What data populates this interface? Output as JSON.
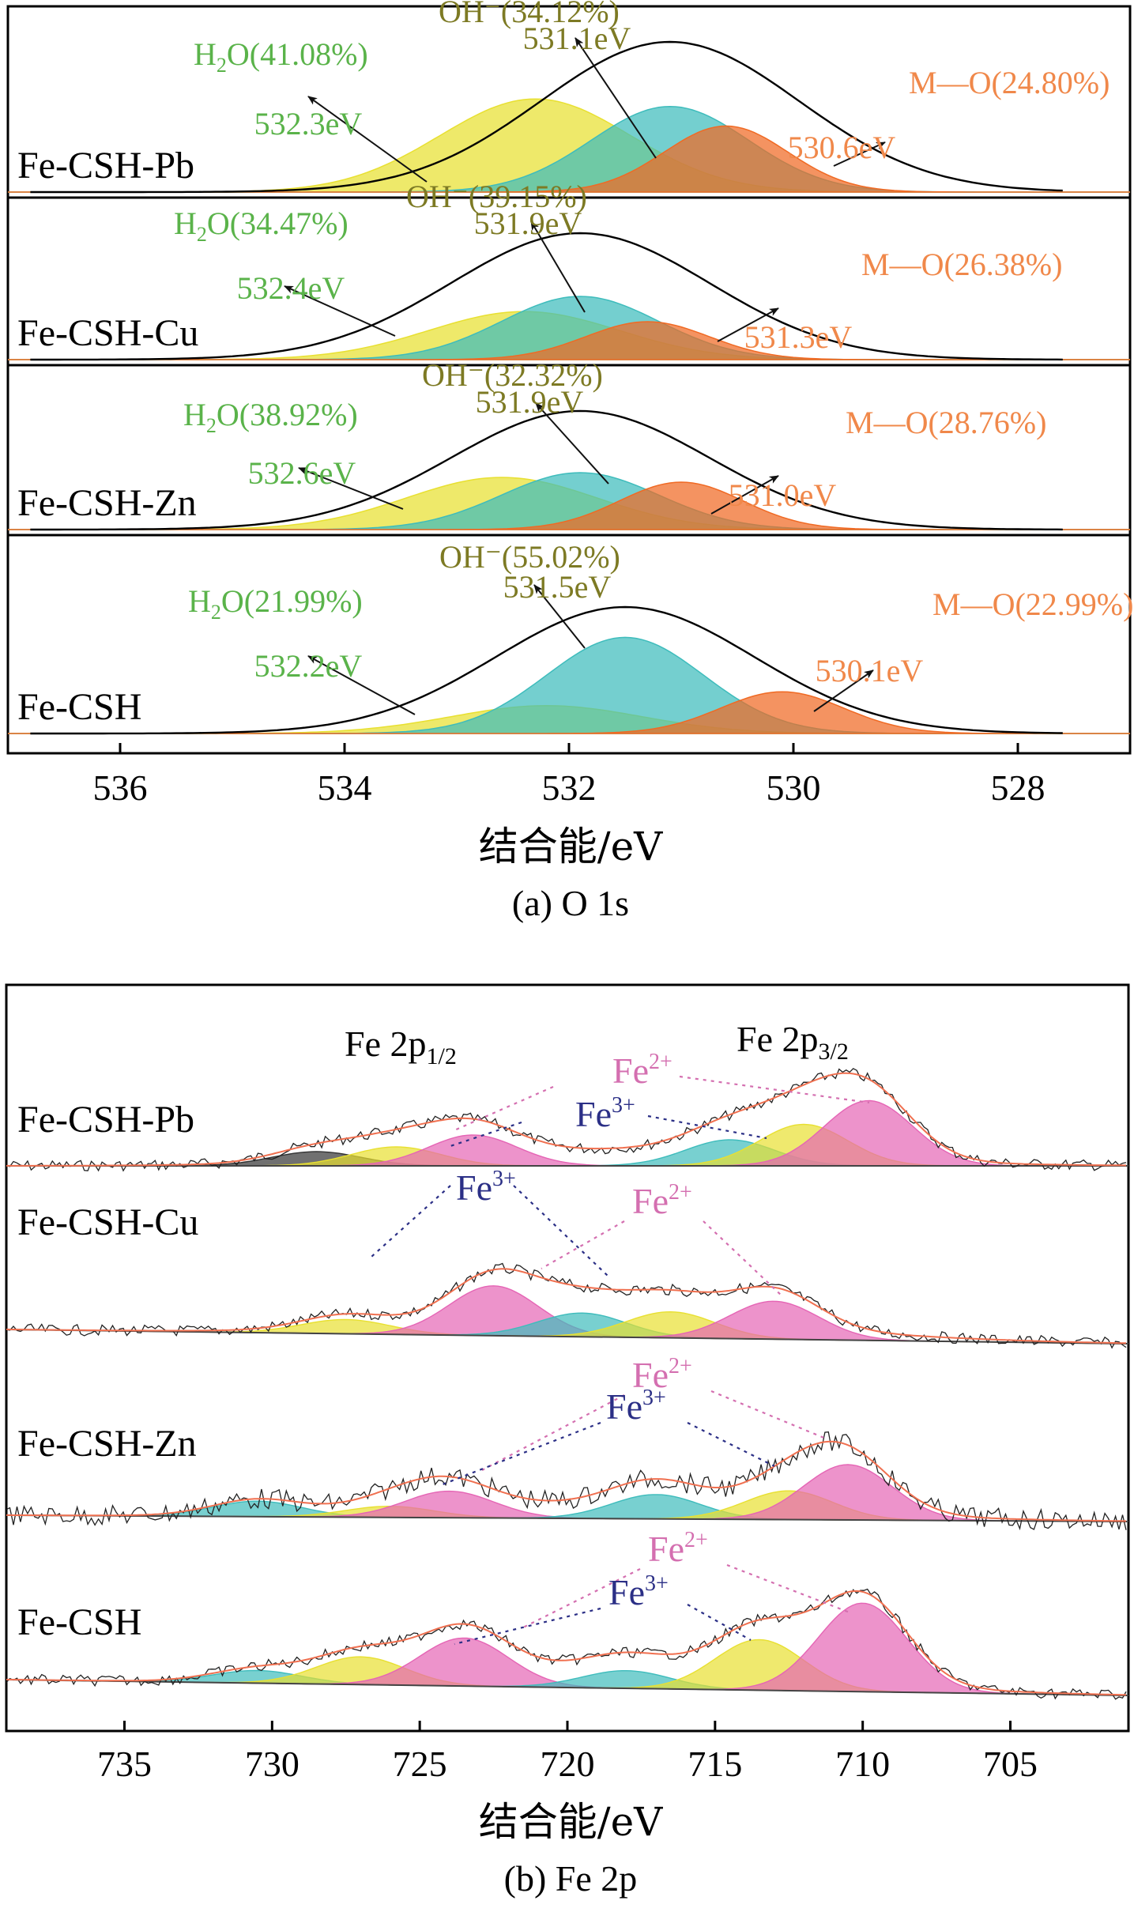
{
  "chart_data": [
    {
      "type": "area",
      "title": "(a) O 1s",
      "xlabel": "结合能/eV",
      "xlim": [
        537,
        527
      ],
      "x_ticks": [
        536,
        534,
        532,
        530,
        528
      ],
      "colors": {
        "H2O": "#5ab34a",
        "OH": "#7d7a24",
        "MO": "#f0884a",
        "fill_H2O": "#e8e031",
        "fill_OH": "#3ebcbc",
        "fill_MO": "#f06a24"
      },
      "panels": [
        {
          "sample": "Fe-CSH-Pb",
          "envelope": {
            "center": 531.1,
            "amplitude": 1.0
          },
          "components": [
            {
              "name": "H2O",
              "label": "H2O(41.08%)",
              "energy": "532.3eV",
              "center": 532.3,
              "amplitude": 0.62
            },
            {
              "name": "OH",
              "label": "OH⁻(34.12%)",
              "energy": "531.1eV",
              "center": 531.1,
              "amplitude": 0.57
            },
            {
              "name": "MO",
              "label": "M—O(24.80%)",
              "energy": "530.6eV",
              "center": 530.6,
              "amplitude": 0.44
            }
          ]
        },
        {
          "sample": "Fe-CSH-Cu",
          "envelope": {
            "center": 531.9,
            "amplitude": 1.0
          },
          "components": [
            {
              "name": "H2O",
              "label": "H2O(34.47%)",
              "energy": "532.4eV",
              "center": 532.4,
              "amplitude": 0.38
            },
            {
              "name": "OH",
              "label": "OH⁻(39.15%)",
              "energy": "531.9eV",
              "center": 531.9,
              "amplitude": 0.5
            },
            {
              "name": "MO",
              "label": "M—O(26.38%)",
              "energy": "531.3eV",
              "center": 531.3,
              "amplitude": 0.3
            }
          ]
        },
        {
          "sample": "Fe-CSH-Zn",
          "envelope": {
            "center": 531.9,
            "amplitude": 1.0
          },
          "components": [
            {
              "name": "H2O",
              "label": "H2O(38.92%)",
              "energy": "532.6eV",
              "center": 532.6,
              "amplitude": 0.44
            },
            {
              "name": "OH",
              "label": "OH⁻(32.32%)",
              "energy": "531.9eV",
              "center": 531.9,
              "amplitude": 0.48
            },
            {
              "name": "MO",
              "label": "M—O(28.76%)",
              "energy": "531.0eV",
              "center": 531.0,
              "amplitude": 0.4
            }
          ]
        },
        {
          "sample": "Fe-CSH",
          "envelope": {
            "center": 531.5,
            "amplitude": 1.0
          },
          "components": [
            {
              "name": "H2O",
              "label": "H2O(21.99%)",
              "energy": "532.2eV",
              "center": 532.2,
              "amplitude": 0.22
            },
            {
              "name": "OH",
              "label": "OH⁻(55.02%)",
              "energy": "531.5eV",
              "center": 531.5,
              "amplitude": 0.76
            },
            {
              "name": "MO",
              "label": "M—O(22.99%)",
              "energy": "530.1eV",
              "center": 530.1,
              "amplitude": 0.33
            }
          ]
        }
      ]
    },
    {
      "type": "line",
      "title": "(b) Fe 2p",
      "xlabel": "结合能/eV",
      "xlim": [
        739,
        701
      ],
      "x_ticks": [
        735,
        730,
        725,
        720,
        715,
        710,
        705
      ],
      "peak_labels": {
        "p12": "Fe 2p",
        "p12_sub": "1/2",
        "p32": "Fe 2p",
        "p32_sub": "3/2",
        "fe2": "Fe",
        "fe2_sup": "2+",
        "fe3": "Fe",
        "fe3_sup": "3+"
      },
      "colors": {
        "fe2": "#d46fb0",
        "fe3": "#2b2f86",
        "fit": "#f07050",
        "raw": "#222222"
      },
      "panels": [
        {
          "sample": "Fe-CSH-Pb",
          "components": [
            {
              "center": 728.5,
              "amplitude": 0.12,
              "color": "#333333"
            },
            {
              "center": 725.8,
              "amplitude": 0.16,
              "color": "#e8e031"
            },
            {
              "center": 723.2,
              "amplitude": 0.26,
              "color": "#e565b5"
            },
            {
              "center": 714.5,
              "amplitude": 0.22,
              "color": "#3ebcbc"
            },
            {
              "center": 712.0,
              "amplitude": 0.35,
              "color": "#e8e031"
            },
            {
              "center": 709.8,
              "amplitude": 0.55,
              "color": "#e565b5"
            }
          ]
        },
        {
          "sample": "Fe-CSH-Cu",
          "components": [
            {
              "center": 727.5,
              "amplitude": 0.12,
              "color": "#e8e031"
            },
            {
              "center": 722.5,
              "amplitude": 0.42,
              "color": "#e565b5"
            },
            {
              "center": 719.5,
              "amplitude": 0.2,
              "color": "#3ebcbc"
            },
            {
              "center": 716.5,
              "amplitude": 0.22,
              "color": "#e8e031"
            },
            {
              "center": 713.0,
              "amplitude": 0.32,
              "color": "#e565b5"
            }
          ]
        },
        {
          "sample": "Fe-CSH-Zn",
          "components": [
            {
              "center": 730.5,
              "amplitude": 0.14,
              "color": "#3ebcbc"
            },
            {
              "center": 726.0,
              "amplitude": 0.1,
              "color": "#e8e031"
            },
            {
              "center": 724.0,
              "amplitude": 0.24,
              "color": "#e565b5"
            },
            {
              "center": 717.0,
              "amplitude": 0.22,
              "color": "#3ebcbc"
            },
            {
              "center": 712.5,
              "amplitude": 0.26,
              "color": "#e8e031"
            },
            {
              "center": 710.5,
              "amplitude": 0.5,
              "color": "#e565b5"
            }
          ]
        },
        {
          "sample": "Fe-CSH",
          "components": [
            {
              "center": 730.5,
              "amplitude": 0.1,
              "color": "#3ebcbc"
            },
            {
              "center": 727.0,
              "amplitude": 0.22,
              "color": "#e8e031"
            },
            {
              "center": 723.5,
              "amplitude": 0.38,
              "color": "#e565b5"
            },
            {
              "center": 718.0,
              "amplitude": 0.14,
              "color": "#3ebcbc"
            },
            {
              "center": 713.5,
              "amplitude": 0.4,
              "color": "#e8e031"
            },
            {
              "center": 710.0,
              "amplitude": 0.7,
              "color": "#e565b5"
            }
          ]
        }
      ]
    }
  ]
}
